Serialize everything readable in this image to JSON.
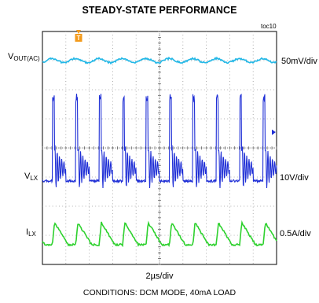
{
  "chart_data": {
    "type": "line",
    "title": "STEADY-STATE PERFORMANCE",
    "figure_tag": "toc10",
    "time_per_div": "2µs/div",
    "time_divisions": 10,
    "vertical_divisions": 8,
    "grid": true,
    "conditions": "CONDITIONS: DCM MODE, 40mA LOAD",
    "trigger_marker": "T",
    "colors": {
      "vout": "#22b7e6",
      "vlx": "#1f2fd6",
      "ilx": "#2ed12e",
      "trigger": "#f39a1b",
      "grid": "#9a9a9a"
    },
    "switching_period_us": 2.0,
    "series": [
      {
        "label_main": "V",
        "label_sub": "OUT(AC)",
        "scale": "50mV/div",
        "color": "#22b7e6",
        "description": "ac-coupled output ripple",
        "ripple_mV_pp": 20
      },
      {
        "label_main": "V",
        "label_sub": "LX",
        "scale": "10V/div",
        "color": "#1f2fd6",
        "description": "switch node",
        "peak_V": 30,
        "ringing_V_pp": 16
      },
      {
        "label_main": "I",
        "label_sub": "LX",
        "scale": "0.5A/div",
        "color": "#2ed12e",
        "description": "inductor current, triangular DCM",
        "peak_A": 0.38
      }
    ]
  }
}
